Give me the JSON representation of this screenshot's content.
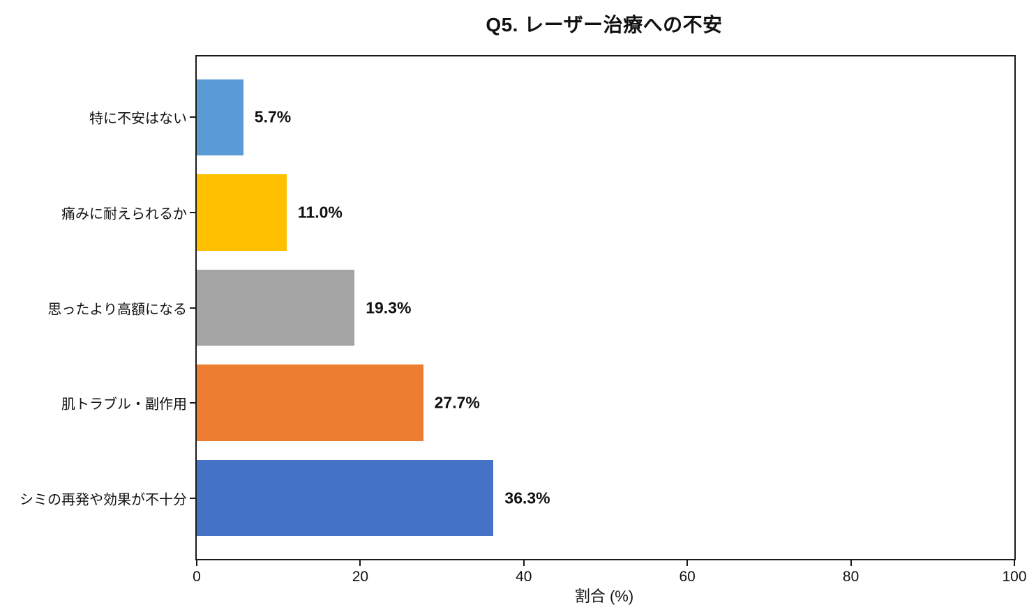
{
  "title": "Q5. レーザー治療への不安",
  "x_axis_label": "割合 (%)",
  "chart_data": {
    "type": "bar",
    "orientation": "horizontal",
    "title": "Q5. レーザー治療への不安",
    "xlabel": "割合 (%)",
    "ylabel": "",
    "categories": [
      "特に不安はない",
      "痛みに耐えられるか",
      "思ったより高額になる",
      "肌トラブル・副作用",
      "シミの再発や効果が不十分"
    ],
    "values": [
      5.7,
      11.0,
      19.3,
      27.7,
      36.3
    ],
    "value_labels": [
      "5.7%",
      "11.0%",
      "19.3%",
      "27.7%",
      "36.3%"
    ],
    "bar_colors": [
      "#5B9BD5",
      "#FFC000",
      "#A5A5A5",
      "#ED7D31",
      "#4472C4"
    ],
    "xlim": [
      0,
      100
    ],
    "xticks": [
      0,
      20,
      40,
      60,
      80,
      100
    ],
    "grid": false,
    "legend": "none",
    "background_color": "#FFFFFF",
    "axis_color": "#1A1A1A"
  }
}
